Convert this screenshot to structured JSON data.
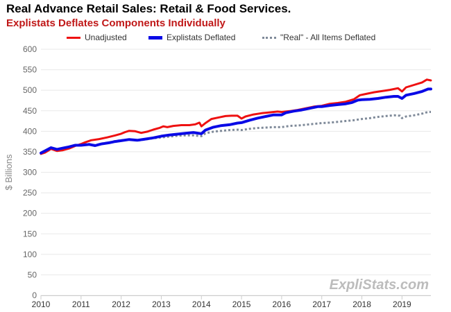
{
  "header": {
    "title": "Real Advance Retail Sales: Retail & Food Services.",
    "subtitle": "Explistats Deflates Components Individually"
  },
  "colors": {
    "subtitle": "#c01818",
    "unadjusted": "#ee1111",
    "explistats_deflated": "#0a0ae6",
    "real_all_items": "#7f8a99",
    "grid": "#e8e8e8",
    "axis_text": "#666666",
    "ylabel": "#888888"
  },
  "legend": {
    "items": [
      {
        "label": "Unadjusted",
        "style": "solid",
        "color": "#ee1111"
      },
      {
        "label": "Explistats Deflated",
        "style": "solid-thick",
        "color": "#0a0ae6"
      },
      {
        "label": "\"Real\" - All Items Deflated",
        "style": "dotted",
        "color": "#7f8a99"
      }
    ]
  },
  "watermark": "ExpliStats.com",
  "chart_data": {
    "type": "line",
    "title": "Real Advance Retail Sales: Retail & Food Services.",
    "subtitle": "Explistats Deflates Components Individually",
    "xlabel": "",
    "ylabel": "$ Billions",
    "xlim": [
      2010,
      2019.72
    ],
    "ylim": [
      0,
      600
    ],
    "x_ticks": [
      "2010",
      "2011",
      "2012",
      "2013",
      "2014",
      "2015",
      "2016",
      "2017",
      "2018",
      "2019"
    ],
    "y_ticks": [
      "0",
      "50",
      "100",
      "150",
      "200",
      "250",
      "300",
      "350",
      "400",
      "450",
      "500",
      "550",
      "600"
    ],
    "grid": "horizontal",
    "legend_position": "top",
    "series": [
      {
        "name": "Unadjusted",
        "points": [
          [
            2010.0,
            345
          ],
          [
            2010.1,
            348
          ],
          [
            2010.25,
            357
          ],
          [
            2010.4,
            352
          ],
          [
            2010.55,
            354
          ],
          [
            2010.7,
            358
          ],
          [
            2010.85,
            364
          ],
          [
            2011.0,
            369
          ],
          [
            2011.1,
            373
          ],
          [
            2011.25,
            378
          ],
          [
            2011.45,
            381
          ],
          [
            2011.65,
            385
          ],
          [
            2011.85,
            390
          ],
          [
            2012.0,
            394
          ],
          [
            2012.1,
            398
          ],
          [
            2012.2,
            401
          ],
          [
            2012.35,
            400
          ],
          [
            2012.5,
            396
          ],
          [
            2012.65,
            399
          ],
          [
            2012.8,
            404
          ],
          [
            2012.95,
            408
          ],
          [
            2013.05,
            412
          ],
          [
            2013.15,
            410
          ],
          [
            2013.3,
            413
          ],
          [
            2013.5,
            415
          ],
          [
            2013.7,
            415
          ],
          [
            2013.85,
            417
          ],
          [
            2013.95,
            421
          ],
          [
            2014.0,
            412
          ],
          [
            2014.1,
            420
          ],
          [
            2014.25,
            430
          ],
          [
            2014.45,
            434
          ],
          [
            2014.6,
            437
          ],
          [
            2014.75,
            438
          ],
          [
            2014.9,
            438
          ],
          [
            2015.0,
            431
          ],
          [
            2015.1,
            436
          ],
          [
            2015.3,
            441
          ],
          [
            2015.5,
            444
          ],
          [
            2015.7,
            446
          ],
          [
            2015.9,
            448
          ],
          [
            2016.0,
            447
          ],
          [
            2016.2,
            449
          ],
          [
            2016.4,
            452
          ],
          [
            2016.6,
            456
          ],
          [
            2016.8,
            460
          ],
          [
            2017.0,
            462
          ],
          [
            2017.2,
            467
          ],
          [
            2017.4,
            469
          ],
          [
            2017.6,
            472
          ],
          [
            2017.8,
            478
          ],
          [
            2017.95,
            488
          ],
          [
            2018.1,
            491
          ],
          [
            2018.3,
            495
          ],
          [
            2018.5,
            498
          ],
          [
            2018.7,
            501
          ],
          [
            2018.9,
            505
          ],
          [
            2019.0,
            497
          ],
          [
            2019.1,
            507
          ],
          [
            2019.3,
            513
          ],
          [
            2019.5,
            519
          ],
          [
            2019.62,
            526
          ],
          [
            2019.72,
            524
          ]
        ]
      },
      {
        "name": "Explistats Deflated",
        "points": [
          [
            2010.0,
            347
          ],
          [
            2010.1,
            352
          ],
          [
            2010.25,
            360
          ],
          [
            2010.4,
            356
          ],
          [
            2010.55,
            359
          ],
          [
            2010.7,
            362
          ],
          [
            2010.85,
            366
          ],
          [
            2011.0,
            366
          ],
          [
            2011.2,
            368
          ],
          [
            2011.35,
            365
          ],
          [
            2011.5,
            369
          ],
          [
            2011.7,
            372
          ],
          [
            2011.85,
            375
          ],
          [
            2012.0,
            377
          ],
          [
            2012.2,
            380
          ],
          [
            2012.4,
            378
          ],
          [
            2012.6,
            381
          ],
          [
            2012.8,
            384
          ],
          [
            2013.0,
            388
          ],
          [
            2013.2,
            391
          ],
          [
            2013.4,
            393
          ],
          [
            2013.6,
            395
          ],
          [
            2013.8,
            397
          ],
          [
            2014.0,
            394
          ],
          [
            2014.1,
            403
          ],
          [
            2014.3,
            410
          ],
          [
            2014.5,
            414
          ],
          [
            2014.7,
            416
          ],
          [
            2014.9,
            420
          ],
          [
            2015.0,
            421
          ],
          [
            2015.2,
            427
          ],
          [
            2015.4,
            432
          ],
          [
            2015.6,
            436
          ],
          [
            2015.8,
            440
          ],
          [
            2016.0,
            440
          ],
          [
            2016.1,
            445
          ],
          [
            2016.3,
            449
          ],
          [
            2016.5,
            452
          ],
          [
            2016.7,
            456
          ],
          [
            2016.9,
            460
          ],
          [
            2017.0,
            460
          ],
          [
            2017.2,
            463
          ],
          [
            2017.4,
            465
          ],
          [
            2017.6,
            467
          ],
          [
            2017.75,
            470
          ],
          [
            2017.9,
            476
          ],
          [
            2018.0,
            477
          ],
          [
            2018.2,
            478
          ],
          [
            2018.4,
            480
          ],
          [
            2018.6,
            483
          ],
          [
            2018.8,
            485
          ],
          [
            2018.9,
            485
          ],
          [
            2019.0,
            480
          ],
          [
            2019.1,
            488
          ],
          [
            2019.3,
            492
          ],
          [
            2019.5,
            497
          ],
          [
            2019.65,
            503
          ],
          [
            2019.72,
            503
          ]
        ]
      },
      {
        "name": "\"Real\" - All Items Deflated",
        "points": [
          [
            2010.0,
            347
          ],
          [
            2010.1,
            350
          ],
          [
            2010.25,
            358
          ],
          [
            2010.4,
            354
          ],
          [
            2010.55,
            357
          ],
          [
            2010.7,
            361
          ],
          [
            2010.85,
            365
          ],
          [
            2011.0,
            367
          ],
          [
            2011.2,
            369
          ],
          [
            2011.35,
            366
          ],
          [
            2011.5,
            370
          ],
          [
            2011.7,
            373
          ],
          [
            2011.85,
            376
          ],
          [
            2012.0,
            378
          ],
          [
            2012.2,
            380
          ],
          [
            2012.4,
            377
          ],
          [
            2012.6,
            380
          ],
          [
            2012.8,
            383
          ],
          [
            2013.0,
            385
          ],
          [
            2013.2,
            387
          ],
          [
            2013.4,
            389
          ],
          [
            2013.6,
            390
          ],
          [
            2013.8,
            390
          ],
          [
            2014.0,
            388
          ],
          [
            2014.1,
            395
          ],
          [
            2014.3,
            399
          ],
          [
            2014.5,
            401
          ],
          [
            2014.7,
            403
          ],
          [
            2014.9,
            404
          ],
          [
            2015.0,
            403
          ],
          [
            2015.2,
            406
          ],
          [
            2015.4,
            408
          ],
          [
            2015.6,
            409
          ],
          [
            2015.8,
            410
          ],
          [
            2016.0,
            410
          ],
          [
            2016.2,
            413
          ],
          [
            2016.4,
            414
          ],
          [
            2016.6,
            416
          ],
          [
            2016.8,
            418
          ],
          [
            2017.0,
            420
          ],
          [
            2017.2,
            421
          ],
          [
            2017.4,
            423
          ],
          [
            2017.6,
            425
          ],
          [
            2017.8,
            427
          ],
          [
            2018.0,
            430
          ],
          [
            2018.2,
            432
          ],
          [
            2018.4,
            435
          ],
          [
            2018.6,
            437
          ],
          [
            2018.8,
            439
          ],
          [
            2018.95,
            438
          ],
          [
            2019.0,
            432
          ],
          [
            2019.1,
            436
          ],
          [
            2019.3,
            439
          ],
          [
            2019.5,
            443
          ],
          [
            2019.65,
            447
          ],
          [
            2019.72,
            447
          ]
        ]
      }
    ]
  }
}
